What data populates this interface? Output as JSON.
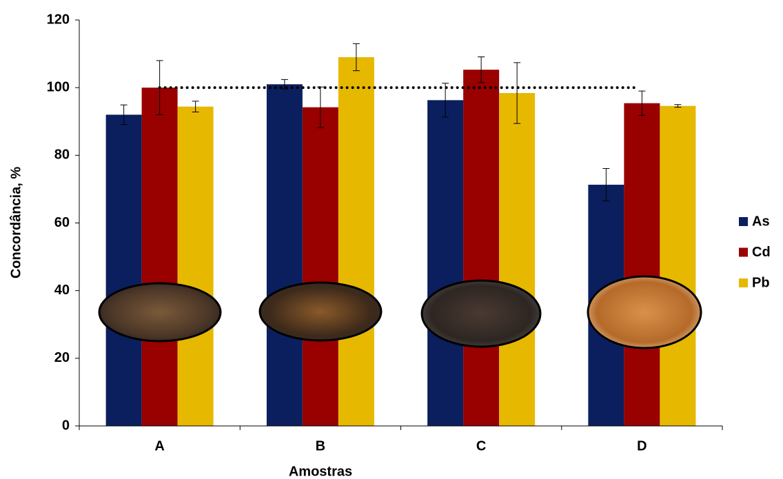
{
  "chart_data": {
    "type": "bar",
    "categories": [
      "A",
      "B",
      "C",
      "D"
    ],
    "x_label": "Amostras",
    "y_label": "Concordância, %",
    "series": [
      {
        "name": "As",
        "color": "#0b1f5e",
        "values": [
          92,
          101,
          96.3,
          71.3
        ],
        "errors": [
          2.9,
          1.4,
          5,
          4.8
        ]
      },
      {
        "name": "Cd",
        "color": "#990000",
        "values": [
          100,
          94.2,
          105.3,
          95.4
        ],
        "errors": [
          8,
          6,
          3.8,
          3.6
        ]
      },
      {
        "name": "Pb",
        "color": "#e6b800",
        "values": [
          94.4,
          109,
          98.4,
          94.6
        ],
        "errors": [
          1.6,
          4,
          9,
          0.4
        ]
      }
    ],
    "reference": 100,
    "ylim": [
      0,
      120
    ],
    "yticks": [
      0,
      20,
      40,
      60,
      80,
      100,
      120
    ],
    "legend": "right"
  }
}
